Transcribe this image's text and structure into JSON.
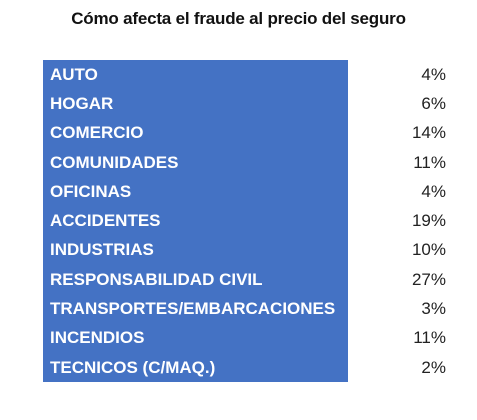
{
  "chart_data": {
    "type": "table",
    "title": "Cómo afecta el fraude al precio del seguro",
    "rows": [
      {
        "label": "AUTO",
        "value": "4%"
      },
      {
        "label": "HOGAR",
        "value": "6%"
      },
      {
        "label": "COMERCIO",
        "value": "14%"
      },
      {
        "label": "COMUNIDADES",
        "value": "11%"
      },
      {
        "label": "OFICINAS",
        "value": "4%"
      },
      {
        "label": "ACCIDENTES",
        "value": "19%"
      },
      {
        "label": "INDUSTRIAS",
        "value": "10%"
      },
      {
        "label": "RESPONSABILIDAD CIVIL",
        "value": "27%"
      },
      {
        "label": "TRANSPORTES/EMBARCACIONES",
        "value": "3%"
      },
      {
        "label": "INCENDIOS",
        "value": "11%"
      },
      {
        "label": "TECNICOS (C/MAQ.)",
        "value": "2%"
      }
    ],
    "colors": {
      "label_fill": "#4472c4",
      "label_text": "#ffffff"
    }
  }
}
